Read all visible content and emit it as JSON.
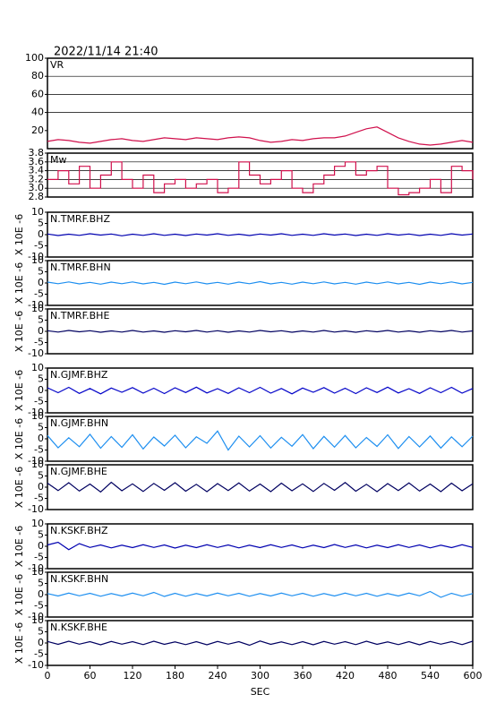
{
  "title": "2022/11/14 21:40",
  "chart_data": [
    {
      "type": "line",
      "title": "VR",
      "color": "#d0104c",
      "grid": true,
      "xlim": [
        0,
        600
      ],
      "ylim": [
        0,
        100
      ],
      "yticks": [
        20,
        40,
        60,
        80,
        100
      ],
      "x": [
        0,
        15,
        30,
        45,
        60,
        75,
        90,
        105,
        120,
        135,
        150,
        165,
        180,
        195,
        210,
        225,
        240,
        255,
        270,
        285,
        300,
        315,
        330,
        345,
        360,
        375,
        390,
        405,
        420,
        435,
        450,
        465,
        480,
        495,
        510,
        525,
        540,
        555,
        570,
        585,
        600
      ],
      "values": [
        8,
        10,
        9,
        7,
        6,
        8,
        10,
        11,
        9,
        8,
        10,
        12,
        11,
        10,
        12,
        11,
        10,
        12,
        13,
        12,
        9,
        7,
        8,
        10,
        9,
        11,
        12,
        12,
        14,
        18,
        22,
        24,
        18,
        12,
        8,
        5,
        4,
        5,
        7,
        9,
        7
      ]
    },
    {
      "type": "step",
      "title": "Mw",
      "color": "#d0104c",
      "grid": true,
      "xlim": [
        0,
        600
      ],
      "ylim": [
        2.8,
        3.8
      ],
      "yticks": [
        2.8,
        {
          "value": 3,
          "label": "3.0"
        },
        3.2,
        3.4,
        3.6,
        3.8
      ],
      "x": [
        0,
        15,
        30,
        45,
        60,
        75,
        90,
        105,
        120,
        135,
        150,
        165,
        180,
        195,
        210,
        225,
        240,
        255,
        270,
        285,
        300,
        315,
        330,
        345,
        360,
        375,
        390,
        405,
        420,
        435,
        450,
        465,
        480,
        495,
        510,
        525,
        540,
        555,
        570,
        585,
        600
      ],
      "values": [
        3.2,
        3.4,
        3.1,
        3.5,
        3.0,
        3.3,
        3.6,
        3.2,
        3.0,
        3.3,
        2.9,
        3.1,
        3.2,
        3.0,
        3.1,
        3.2,
        2.9,
        3.0,
        3.6,
        3.3,
        3.1,
        3.2,
        3.4,
        3.0,
        2.9,
        3.1,
        3.3,
        3.5,
        3.6,
        3.3,
        3.4,
        3.5,
        3.0,
        2.85,
        2.9,
        3.0,
        3.2,
        2.9,
        3.5,
        3.4,
        3.2
      ]
    },
    {
      "type": "line",
      "title": "N.TMRF.BHZ",
      "ylabel": "X 10E -6",
      "color": "#0000b0",
      "xlim": [
        0,
        600
      ],
      "ylim": [
        -10,
        10
      ],
      "yticks": [
        -10,
        -5,
        0,
        5,
        10
      ],
      "x": [
        0,
        15,
        30,
        45,
        60,
        75,
        90,
        105,
        120,
        135,
        150,
        165,
        180,
        195,
        210,
        225,
        240,
        255,
        270,
        285,
        300,
        315,
        330,
        345,
        360,
        375,
        390,
        405,
        420,
        435,
        450,
        465,
        480,
        495,
        510,
        525,
        540,
        555,
        570,
        585,
        600
      ],
      "values": [
        0.3,
        -0.4,
        0.2,
        -0.3,
        0.4,
        -0.2,
        0.3,
        -0.5,
        0.2,
        -0.3,
        0.4,
        -0.3,
        0.2,
        -0.4,
        0.3,
        -0.2,
        0.4,
        -0.3,
        0.2,
        -0.4,
        0.3,
        -0.2,
        0.4,
        -0.3,
        0.2,
        -0.3,
        0.4,
        -0.2,
        0.3,
        -0.4,
        0.2,
        -0.3,
        0.4,
        -0.2,
        0.3,
        -0.4,
        0.2,
        -0.3,
        0.4,
        -0.2,
        0.3
      ]
    },
    {
      "type": "line",
      "title": "N.TMRF.BHN",
      "ylabel": "X 10E -6",
      "color": "#1e8ff0",
      "xlim": [
        0,
        600
      ],
      "ylim": [
        -10,
        10
      ],
      "yticks": [
        -10,
        -5,
        0,
        5,
        10
      ],
      "x": [
        0,
        15,
        30,
        45,
        60,
        75,
        90,
        105,
        120,
        135,
        150,
        165,
        180,
        195,
        210,
        225,
        240,
        255,
        270,
        285,
        300,
        315,
        330,
        345,
        360,
        375,
        390,
        405,
        420,
        435,
        450,
        465,
        480,
        495,
        510,
        525,
        540,
        555,
        570,
        585,
        600
      ],
      "values": [
        0.4,
        -0.3,
        0.5,
        -0.4,
        0.3,
        -0.5,
        0.4,
        -0.3,
        0.5,
        -0.4,
        0.3,
        -0.6,
        0.4,
        -0.3,
        0.5,
        -0.4,
        0.3,
        -0.5,
        0.4,
        -0.3,
        0.6,
        -0.4,
        0.3,
        -0.5,
        0.4,
        -0.3,
        0.5,
        -0.4,
        0.3,
        -0.5,
        0.4,
        -0.3,
        0.5,
        -0.4,
        0.3,
        -0.6,
        0.4,
        -0.3,
        0.5,
        -0.4,
        0.3
      ]
    },
    {
      "type": "line",
      "title": "N.TMRF.BHE",
      "ylabel": "X 10E -6",
      "color": "#000060",
      "xlim": [
        0,
        600
      ],
      "ylim": [
        -10,
        10
      ],
      "yticks": [
        -10,
        -5,
        0,
        5,
        10
      ],
      "x": [
        0,
        15,
        30,
        45,
        60,
        75,
        90,
        105,
        120,
        135,
        150,
        165,
        180,
        195,
        210,
        225,
        240,
        255,
        270,
        285,
        300,
        315,
        330,
        345,
        360,
        375,
        390,
        405,
        420,
        435,
        450,
        465,
        480,
        495,
        510,
        525,
        540,
        555,
        570,
        585,
        600
      ],
      "values": [
        0.3,
        -0.3,
        0.4,
        -0.2,
        0.3,
        -0.4,
        0.2,
        -0.3,
        0.4,
        -0.3,
        0.2,
        -0.4,
        0.3,
        -0.2,
        0.4,
        -0.3,
        0.3,
        -0.4,
        0.2,
        -0.3,
        0.4,
        -0.2,
        0.3,
        -0.4,
        0.2,
        -0.3,
        0.4,
        -0.3,
        0.2,
        -0.4,
        0.3,
        -0.2,
        0.4,
        -0.3,
        0.2,
        -0.4,
        0.3,
        -0.2,
        0.4,
        -0.3,
        0.2
      ]
    },
    {
      "type": "line",
      "title": "N.GJMF.BHZ",
      "ylabel": "X 10E -6",
      "color": "#0000c8",
      "xlim": [
        0,
        600
      ],
      "ylim": [
        -10,
        10
      ],
      "yticks": [
        -10,
        -5,
        0,
        5,
        10
      ],
      "x": [
        0,
        15,
        30,
        45,
        60,
        75,
        90,
        105,
        120,
        135,
        150,
        165,
        180,
        195,
        210,
        225,
        240,
        255,
        270,
        285,
        300,
        315,
        330,
        345,
        360,
        375,
        390,
        405,
        420,
        435,
        450,
        465,
        480,
        495,
        510,
        525,
        540,
        555,
        570,
        585,
        600
      ],
      "values": [
        1.2,
        -1.0,
        1.4,
        -1.3,
        0.9,
        -1.5,
        1.1,
        -0.8,
        1.3,
        -1.2,
        1.0,
        -1.4,
        1.2,
        -0.9,
        1.5,
        -1.1,
        0.8,
        -1.3,
        1.2,
        -1.0,
        1.4,
        -1.2,
        0.9,
        -1.5,
        1.1,
        -0.8,
        1.3,
        -1.2,
        1.0,
        -1.4,
        1.2,
        -0.9,
        1.5,
        -1.1,
        0.8,
        -1.3,
        1.2,
        -1.0,
        1.4,
        -1.2,
        0.9
      ]
    },
    {
      "type": "line",
      "title": "N.GJMF.BHN",
      "ylabel": "X 10E -6",
      "color": "#1e8ff0",
      "xlim": [
        0,
        600
      ],
      "ylim": [
        -10,
        10
      ],
      "yticks": [
        -10,
        -5,
        0,
        5,
        10
      ],
      "x": [
        0,
        15,
        30,
        45,
        60,
        75,
        90,
        105,
        120,
        135,
        150,
        165,
        180,
        195,
        210,
        225,
        240,
        255,
        270,
        285,
        300,
        315,
        330,
        345,
        360,
        375,
        390,
        405,
        420,
        435,
        450,
        465,
        480,
        495,
        510,
        525,
        540,
        555,
        570,
        585,
        600
      ],
      "values": [
        1.5,
        -4.0,
        0.5,
        -3.5,
        2.0,
        -4.2,
        1.0,
        -3.8,
        1.8,
        -4.5,
        0.8,
        -3.2,
        1.6,
        -4.0,
        0.9,
        -2.0,
        3.5,
        -5.0,
        1.2,
        -3.6,
        1.4,
        -4.1,
        0.7,
        -3.3,
        1.9,
        -4.4,
        1.1,
        -3.7,
        1.5,
        -4.0,
        0.6,
        -3.4,
        1.8,
        -4.3,
        1.0,
        -3.6,
        1.3,
        -4.1,
        0.9,
        -3.5,
        1.2
      ]
    },
    {
      "type": "line",
      "title": "N.GJMF.BHE",
      "ylabel": "X 10E -6",
      "color": "#000060",
      "xlim": [
        0,
        600
      ],
      "ylim": [
        -10,
        10
      ],
      "yticks": [
        -10,
        -5,
        0,
        5,
        10
      ],
      "x": [
        0,
        15,
        30,
        45,
        60,
        75,
        90,
        105,
        120,
        135,
        150,
        165,
        180,
        195,
        210,
        225,
        240,
        255,
        270,
        285,
        300,
        315,
        330,
        345,
        360,
        375,
        390,
        405,
        420,
        435,
        450,
        465,
        480,
        495,
        510,
        525,
        540,
        555,
        570,
        585,
        600
      ],
      "values": [
        1.8,
        -1.5,
        2.0,
        -1.7,
        1.4,
        -2.1,
        2.2,
        -1.6,
        1.5,
        -1.9,
        1.7,
        -1.4,
        2.0,
        -1.8,
        1.3,
        -2.0,
        1.6,
        -1.5,
        1.9,
        -1.7,
        1.4,
        -2.0,
        1.8,
        -1.6,
        1.5,
        -1.9,
        1.7,
        -1.4,
        2.1,
        -1.8,
        1.3,
        -2.0,
        1.6,
        -1.5,
        1.9,
        -1.7,
        1.4,
        -2.0,
        1.8,
        -1.6,
        1.5
      ]
    },
    {
      "type": "line",
      "title": "N.KSKF.BHZ",
      "ylabel": "X 10E -6",
      "color": "#0000b0",
      "xlim": [
        0,
        600
      ],
      "ylim": [
        -10,
        10
      ],
      "yticks": [
        -10,
        -5,
        0,
        5,
        10
      ],
      "x": [
        0,
        15,
        30,
        45,
        60,
        75,
        90,
        105,
        120,
        135,
        150,
        165,
        180,
        195,
        210,
        225,
        240,
        255,
        270,
        285,
        300,
        315,
        330,
        345,
        360,
        375,
        390,
        405,
        420,
        435,
        450,
        465,
        480,
        495,
        510,
        525,
        540,
        555,
        570,
        585,
        600
      ],
      "values": [
        0.6,
        1.8,
        -1.5,
        1.2,
        -0.5,
        0.6,
        -0.7,
        0.5,
        -0.6,
        0.7,
        -0.5,
        0.6,
        -0.8,
        0.5,
        -0.6,
        0.7,
        -0.5,
        0.6,
        -0.7,
        0.5,
        -0.6,
        0.7,
        -0.5,
        0.6,
        -0.7,
        0.5,
        -0.6,
        0.8,
        -0.5,
        0.6,
        -0.7,
        0.5,
        -0.6,
        0.7,
        -0.5,
        0.6,
        -0.7,
        0.5,
        -0.6,
        0.7,
        -0.5
      ]
    },
    {
      "type": "line",
      "title": "N.KSKF.BHN",
      "ylabel": "X 10E -6",
      "color": "#1e8ff0",
      "xlim": [
        0,
        600
      ],
      "ylim": [
        -10,
        10
      ],
      "yticks": [
        -10,
        -5,
        0,
        5,
        10
      ],
      "x": [
        0,
        15,
        30,
        45,
        60,
        75,
        90,
        105,
        120,
        135,
        150,
        165,
        180,
        195,
        210,
        225,
        240,
        255,
        270,
        285,
        300,
        315,
        330,
        345,
        360,
        375,
        390,
        405,
        420,
        435,
        450,
        465,
        480,
        495,
        510,
        525,
        540,
        555,
        570,
        585,
        600
      ],
      "values": [
        0.5,
        -0.6,
        0.7,
        -0.5,
        0.6,
        -0.7,
        0.5,
        -0.6,
        0.7,
        -0.5,
        1.0,
        -0.8,
        0.6,
        -0.7,
        0.5,
        -0.6,
        0.7,
        -0.5,
        0.6,
        -0.7,
        0.5,
        -0.6,
        0.7,
        -0.5,
        0.6,
        -0.7,
        0.5,
        -0.6,
        0.7,
        -0.5,
        0.6,
        -0.7,
        0.5,
        -0.6,
        0.7,
        -0.5,
        1.4,
        -1.2,
        0.6,
        -0.7,
        0.5
      ]
    },
    {
      "type": "line",
      "title": "N.KSKF.BHE",
      "ylabel": "X 10E -6",
      "color": "#000060",
      "xlim": [
        0,
        600
      ],
      "ylim": [
        -10,
        10
      ],
      "yticks": [
        -10,
        -5,
        0,
        5,
        10
      ],
      "xticks": [
        0,
        60,
        120,
        180,
        240,
        300,
        360,
        420,
        480,
        540,
        600
      ],
      "xlabel": "SEC",
      "x": [
        0,
        15,
        30,
        45,
        60,
        75,
        90,
        105,
        120,
        135,
        150,
        165,
        180,
        195,
        210,
        225,
        240,
        255,
        270,
        285,
        300,
        315,
        330,
        345,
        360,
        375,
        390,
        405,
        420,
        435,
        450,
        465,
        480,
        495,
        510,
        525,
        540,
        555,
        570,
        585,
        600
      ],
      "values": [
        0.7,
        -0.6,
        0.8,
        -0.5,
        0.6,
        -0.8,
        0.7,
        -0.5,
        0.6,
        -0.7,
        0.8,
        -0.6,
        0.5,
        -0.7,
        0.6,
        -0.8,
        0.7,
        -0.5,
        0.6,
        -1.0,
        0.9,
        -0.6,
        0.5,
        -0.7,
        0.6,
        -0.8,
        0.7,
        -0.5,
        0.6,
        -0.7,
        0.8,
        -0.6,
        0.5,
        -0.7,
        0.6,
        -0.8,
        0.7,
        -0.5,
        0.6,
        -0.7,
        0.8
      ]
    }
  ]
}
